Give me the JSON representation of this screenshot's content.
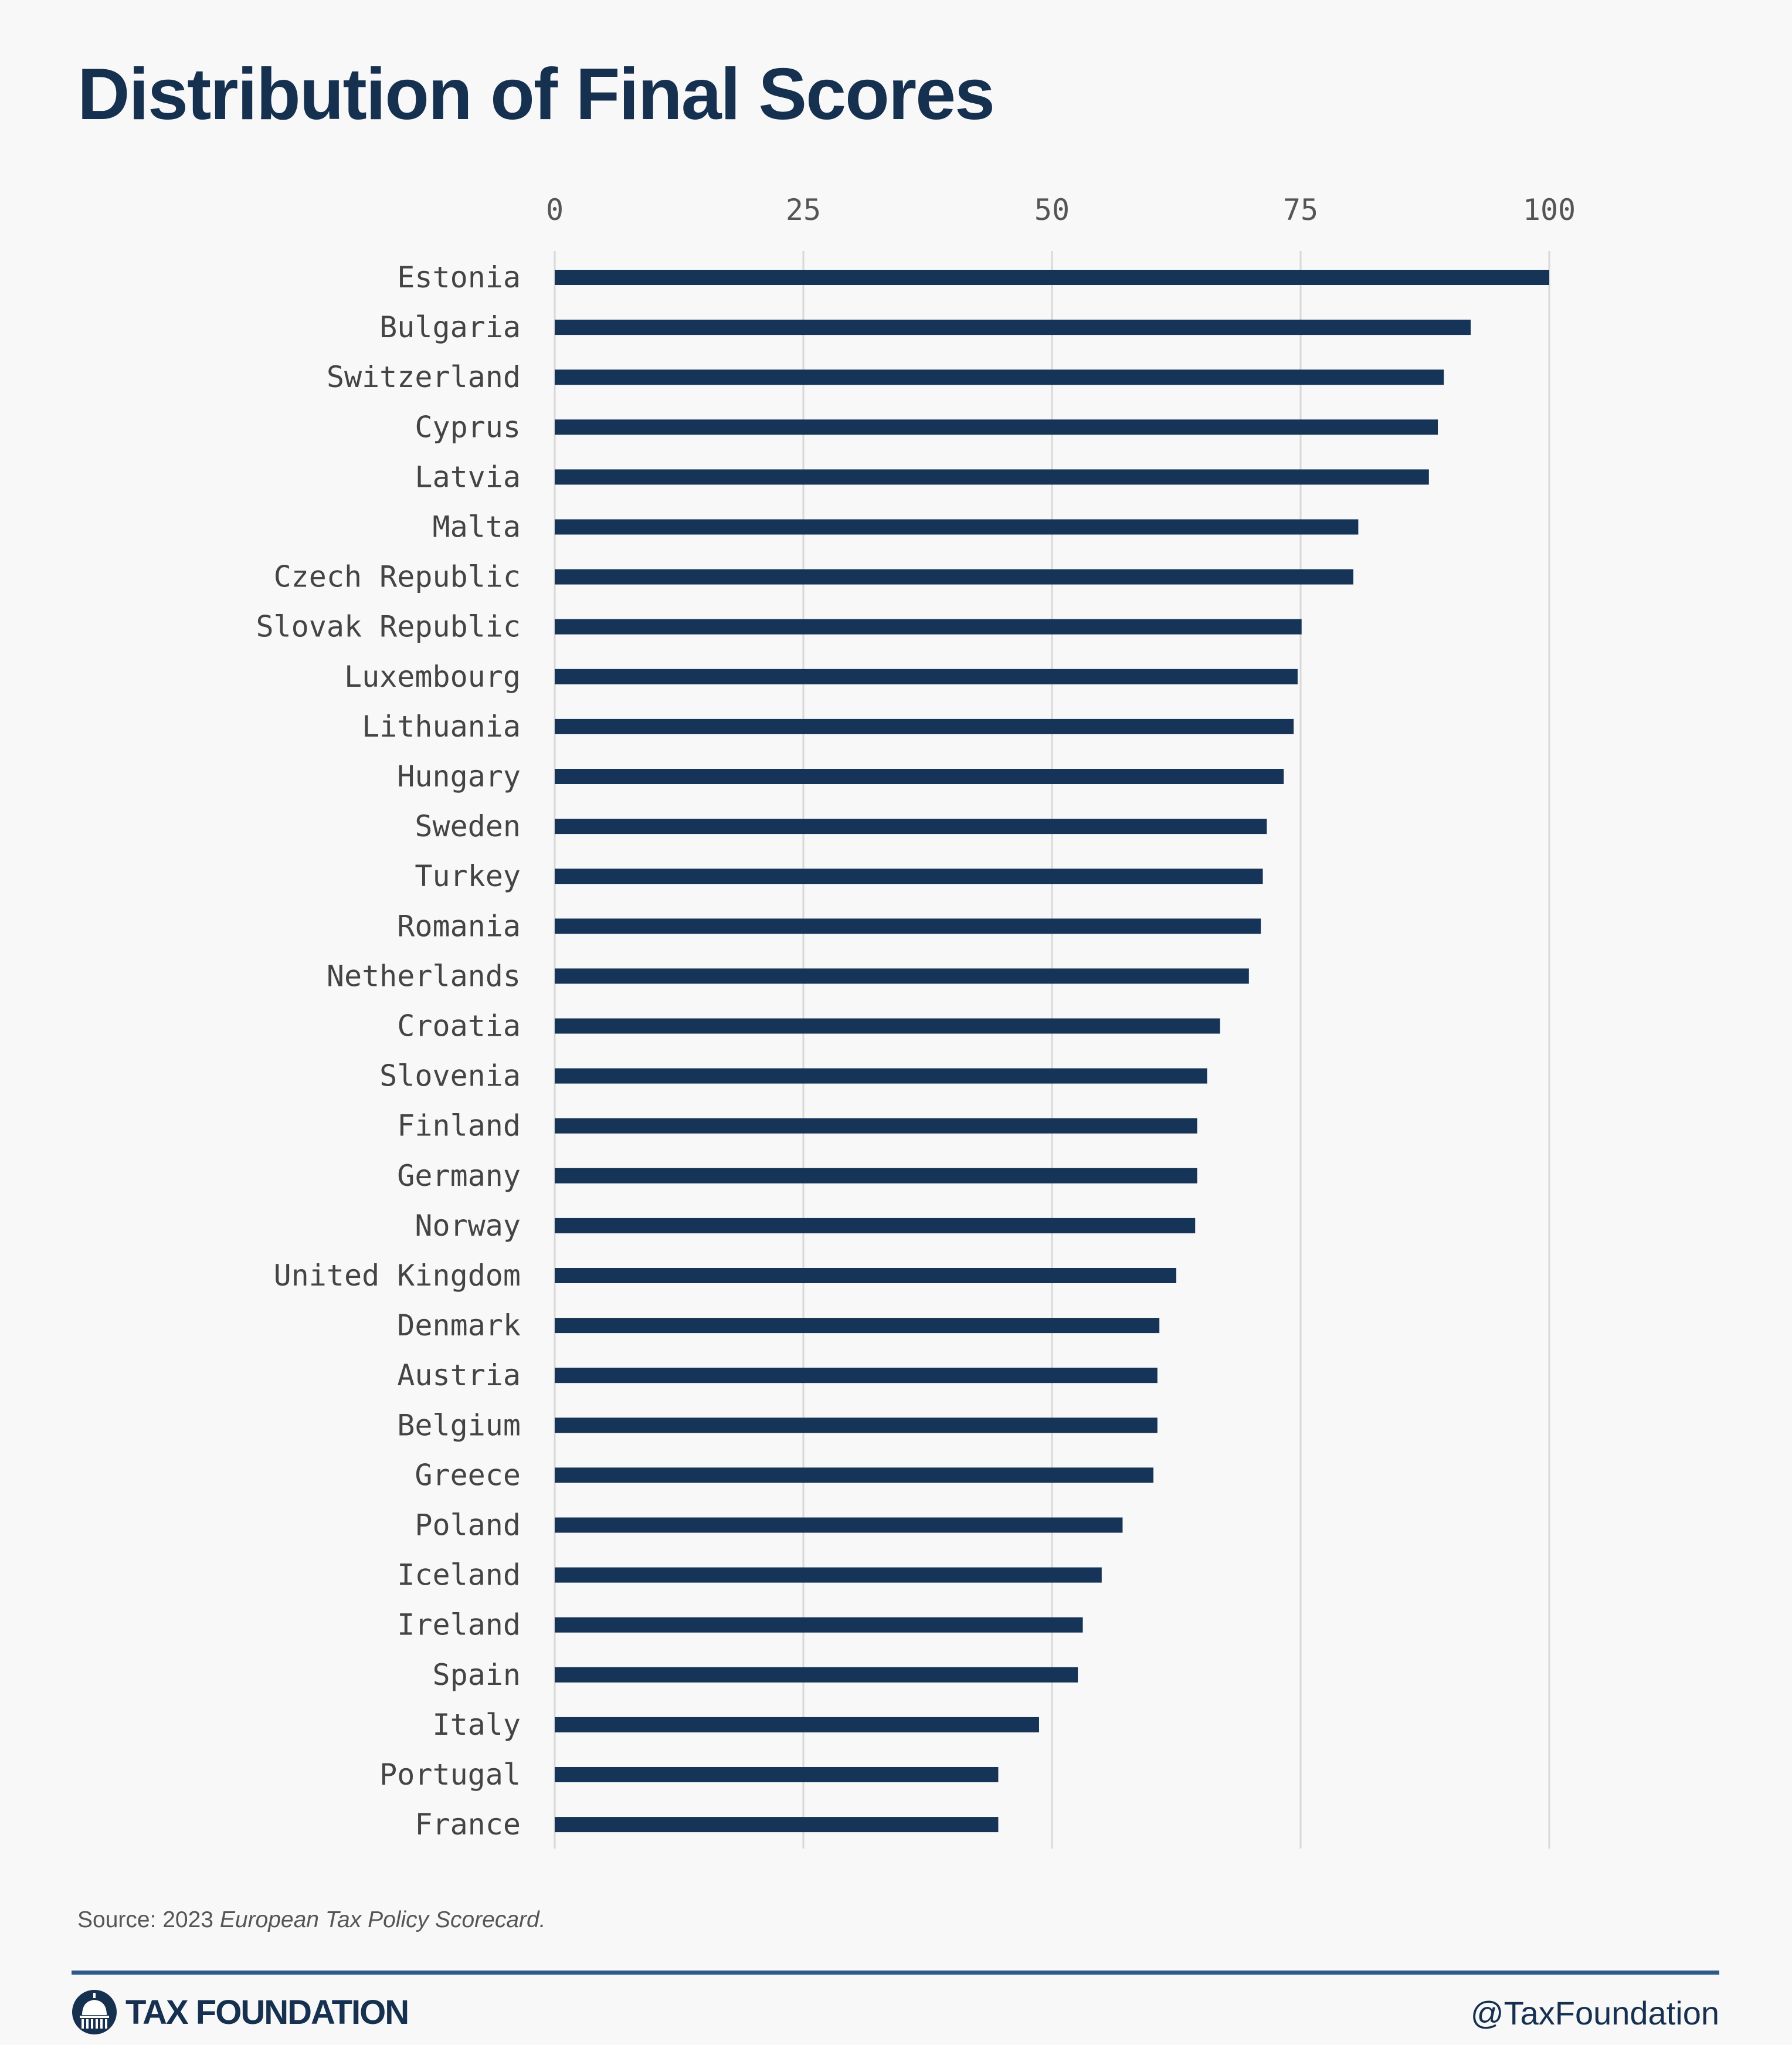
{
  "title": "Distribution of Final Scores",
  "source": {
    "prefix": "Source: 2023 ",
    "title": "European Tax Policy Scorecard."
  },
  "footer": {
    "brand": "TAX FOUNDATION",
    "handle": "@TaxFoundation"
  },
  "colors": {
    "bar": "#163457",
    "title": "#163050",
    "grid": "#d8d8d8",
    "footer_rule": "#2e5a8a",
    "background": "#f8f8f8"
  },
  "icons": {
    "brand_logo": "capitol-dome-icon"
  },
  "chart_data": {
    "type": "bar",
    "orientation": "horizontal",
    "title": "Distribution of Final Scores",
    "xlabel": "",
    "ylabel": "",
    "xlim": [
      0,
      100
    ],
    "x_ticks": [
      0,
      25,
      50,
      75,
      100
    ],
    "x_axis_position": "top",
    "grid": true,
    "legend": "none",
    "categories": [
      "Estonia",
      "Bulgaria",
      "Switzerland",
      "Cyprus",
      "Latvia",
      "Malta",
      "Czech Republic",
      "Slovak Republic",
      "Luxembourg",
      "Lithuania",
      "Hungary",
      "Sweden",
      "Turkey",
      "Romania",
      "Netherlands",
      "Croatia",
      "Slovenia",
      "Finland",
      "Germany",
      "Norway",
      "United Kingdom",
      "Denmark",
      "Austria",
      "Belgium",
      "Greece",
      "Poland",
      "Iceland",
      "Ireland",
      "Spain",
      "Italy",
      "Portugal",
      "France"
    ],
    "values": [
      100,
      92.1,
      89.4,
      88.8,
      87.9,
      80.8,
      80.3,
      75.1,
      74.7,
      74.3,
      73.3,
      71.6,
      71.2,
      71.0,
      69.8,
      66.9,
      65.6,
      64.6,
      64.6,
      64.4,
      62.5,
      60.8,
      60.6,
      60.6,
      60.2,
      57.1,
      55.0,
      53.1,
      52.6,
      48.7,
      44.6,
      44.6
    ]
  }
}
